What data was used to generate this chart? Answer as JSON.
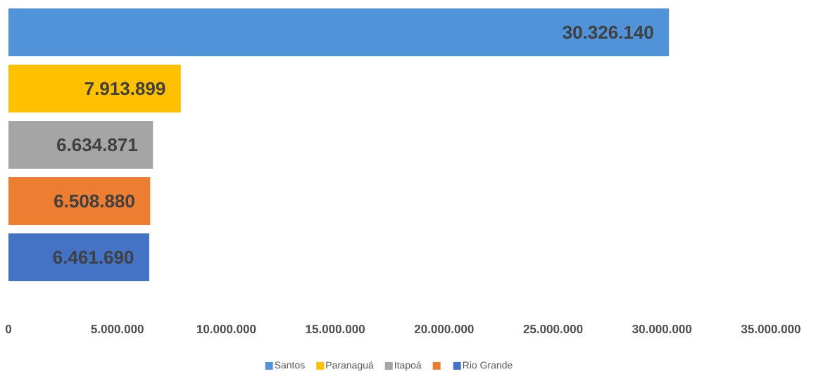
{
  "chart_data": {
    "type": "bar",
    "orientation": "horizontal",
    "categories": [
      null
    ],
    "series": [
      {
        "name": "Santos",
        "color": "#5093d8",
        "values": [
          30326140
        ],
        "value_labels": [
          "30.326.140"
        ]
      },
      {
        "name": "Paranaguá",
        "color": "#ffc000",
        "values": [
          7913899
        ],
        "value_labels": [
          "7.913.899"
        ]
      },
      {
        "name": "Itapoá",
        "color": "#a5a5a5",
        "values": [
          6634871
        ],
        "value_labels": [
          "6.634.871"
        ]
      },
      {
        "color": "#ed7d31",
        "values": [
          6508880
        ],
        "value_labels": [
          "6.508.880"
        ]
      },
      {
        "name": "Rio Grande",
        "color": "#4472c4",
        "values": [
          6461690
        ],
        "value_labels": [
          "6.461.690"
        ]
      }
    ],
    "xlim": [
      0,
      35000000
    ],
    "xticks": [
      {
        "value": 0,
        "label": "0"
      },
      {
        "value": 5000000,
        "label": "5.000.000"
      },
      {
        "value": 10000000,
        "label": "10.000.000"
      },
      {
        "value": 15000000,
        "label": "15.000.000"
      },
      {
        "value": 20000000,
        "label": "20.000.000"
      },
      {
        "value": 25000000,
        "label": "25.000.000"
      },
      {
        "value": 30000000,
        "label": "30.000.000"
      },
      {
        "value": 35000000,
        "label": "35.000.000"
      }
    ],
    "tick_labels": "x",
    "legend": "bottom"
  }
}
